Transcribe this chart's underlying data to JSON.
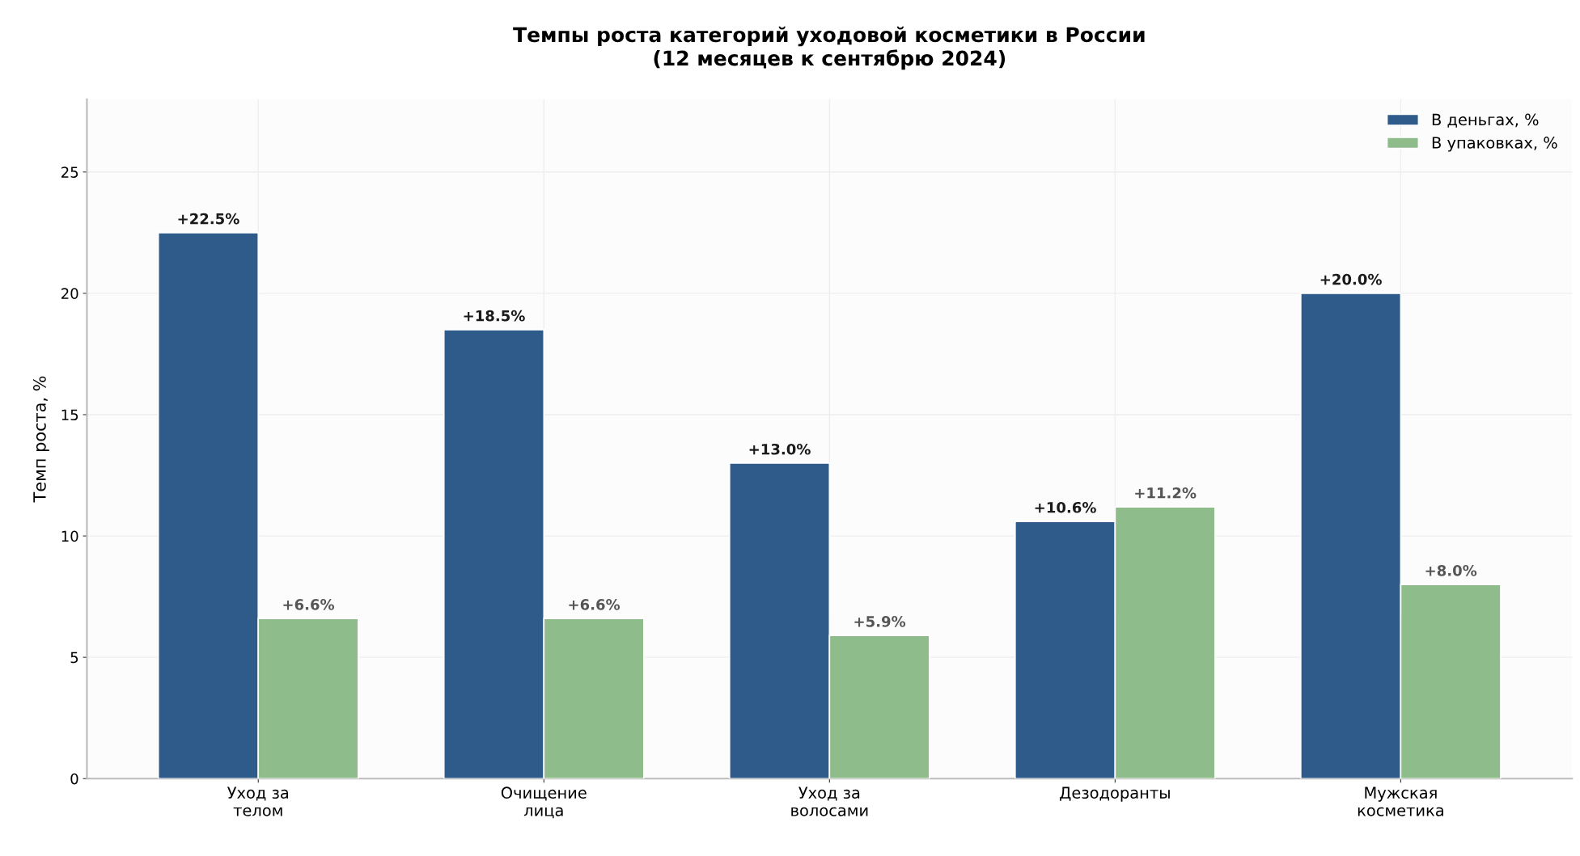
{
  "chart_data": {
    "type": "bar",
    "title": "Темпы роста категорий уходовой косметики в России\n(12 месяцев к сентябрю 2024)",
    "ylabel": "Темп роста, %",
    "categories": [
      "Уход за\nтелом",
      "Очищение\nлица",
      "Уход за\nволосами",
      "Дезодоранты",
      "Мужская\nкосметика"
    ],
    "series": [
      {
        "name": "В деньгах, %",
        "color": "#2e5b8a",
        "values": [
          22.5,
          18.5,
          13.0,
          10.6,
          20.0
        ],
        "value_labels": [
          "+22.5%",
          "+18.5%",
          "+13.0%",
          "+10.6%",
          "+20.0%"
        ]
      },
      {
        "name": "В упаковках, %",
        "color": "#8fbc8b",
        "values": [
          6.6,
          6.6,
          5.9,
          11.2,
          8.0
        ],
        "value_labels": [
          "+6.6%",
          "+6.6%",
          "+5.9%",
          "+11.2%",
          "+8.0%"
        ]
      }
    ],
    "ylim": [
      0,
      28
    ],
    "yticks": [
      0,
      5,
      10,
      15,
      20,
      25
    ],
    "grid": true,
    "legend": "top right"
  }
}
